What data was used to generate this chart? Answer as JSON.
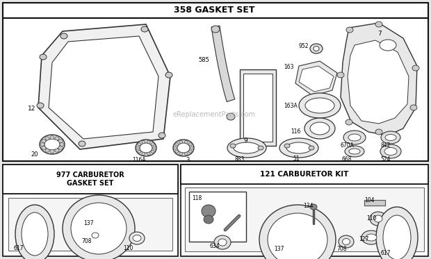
{
  "bg_color": "#e8e8e8",
  "diagram_bg": "#ffffff",
  "border_color": "#111111",
  "title1": "358 GASKET SET",
  "title2": "977 CARBURETOR\nGASKET SET",
  "title3": "121 CARBURETOR KIT",
  "watermark": "eReplacementParts.com"
}
